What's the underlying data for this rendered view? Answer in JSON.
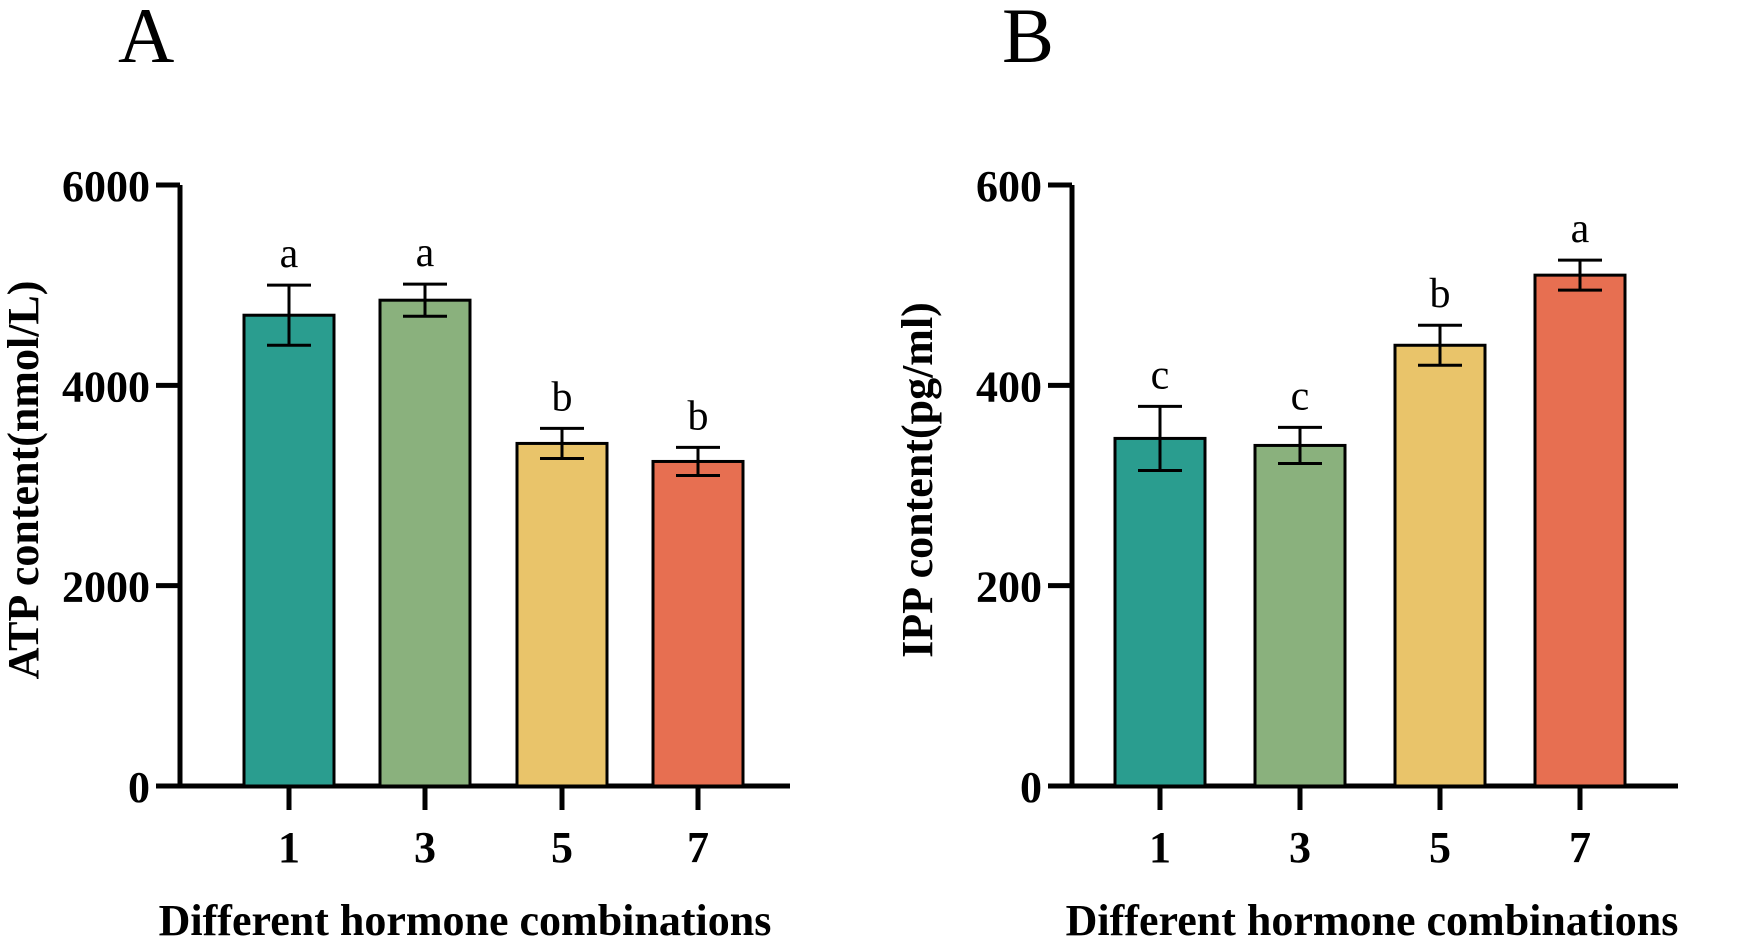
{
  "chart_data": [
    {
      "type": "bar",
      "panel": "A",
      "title": "",
      "categories": [
        "1",
        "3",
        "5",
        "7"
      ],
      "values": [
        4700,
        4850,
        3420,
        3240
      ],
      "errors": [
        300,
        160,
        150,
        140
      ],
      "significance": [
        "a",
        "a",
        "b",
        "b"
      ],
      "colors": [
        "#2a9d8f",
        "#8ab17d",
        "#e9c46a",
        "#e76f51"
      ],
      "xlabel": "Different hormone combinations",
      "ylabel": "ATP content(nmol/L)",
      "ylim": [
        0,
        6000
      ],
      "yticks": [
        "0",
        "2000",
        "4000",
        "6000"
      ],
      "ytick_values": [
        0,
        2000,
        4000,
        6000
      ]
    },
    {
      "type": "bar",
      "panel": "B",
      "title": "",
      "categories": [
        "1",
        "3",
        "5",
        "7"
      ],
      "values": [
        347,
        340,
        440,
        510
      ],
      "errors": [
        32,
        18,
        20,
        15
      ],
      "significance": [
        "c",
        "c",
        "b",
        "a"
      ],
      "colors": [
        "#2a9d8f",
        "#8ab17d",
        "#e9c46a",
        "#e76f51"
      ],
      "xlabel": "Different hormone combinations",
      "ylabel": "IPP content(pg/ml)",
      "ylim": [
        0,
        600
      ],
      "yticks": [
        "0",
        "200",
        "400",
        "600"
      ],
      "ytick_values": [
        0,
        200,
        400,
        600
      ]
    }
  ]
}
